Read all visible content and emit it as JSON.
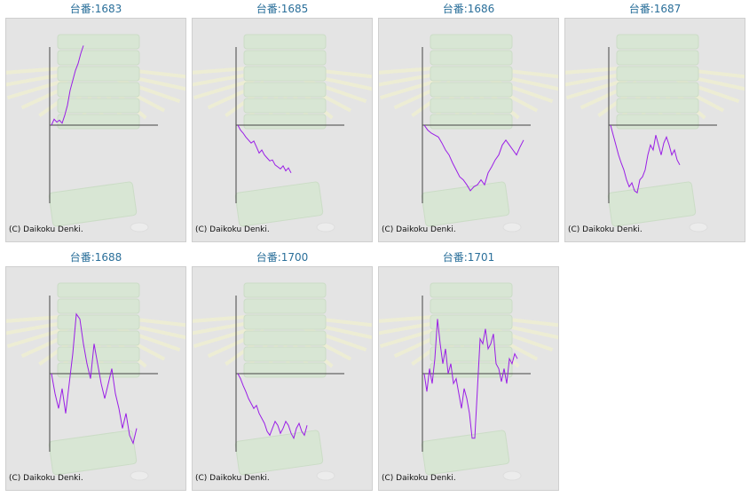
{
  "colors": {
    "title": "#2a6f9a",
    "line": "#9a1ee6",
    "panel_bg": "#e4e4e4",
    "axis": "#444444"
  },
  "copyright": "(C) Daikoku Denki.",
  "machines": [
    {
      "title": "台番:1683",
      "chart_data": {
        "type": "line",
        "x": [
          0,
          3,
          6,
          9,
          12,
          15,
          18,
          21,
          24,
          27,
          30,
          33,
          36
        ],
        "y": [
          0,
          0.06,
          0.03,
          0.05,
          0.02,
          0.1,
          0.2,
          0.35,
          0.45,
          0.55,
          0.62,
          0.72,
          0.8
        ]
      }
    },
    {
      "title": "台番:1685",
      "chart_data": {
        "type": "line",
        "x": [
          0,
          3,
          6,
          9,
          12,
          15,
          18,
          21,
          24,
          27,
          30,
          33,
          36,
          39,
          42,
          45,
          48,
          51,
          54,
          57,
          60
        ],
        "y": [
          0,
          -0.05,
          -0.08,
          -0.12,
          -0.15,
          -0.18,
          -0.16,
          -0.22,
          -0.28,
          -0.25,
          -0.3,
          -0.33,
          -0.36,
          -0.35,
          -0.4,
          -0.42,
          -0.44,
          -0.41,
          -0.46,
          -0.43,
          -0.48
        ]
      }
    },
    {
      "title": "台番:1686",
      "chart_data": {
        "type": "line",
        "x": [
          0,
          4,
          8,
          12,
          16,
          20,
          24,
          28,
          32,
          36,
          40,
          44,
          48,
          52,
          56,
          60,
          64,
          68,
          72,
          76,
          80,
          84,
          88,
          92,
          96,
          100,
          104,
          108,
          112
        ],
        "y": [
          0,
          -0.05,
          -0.08,
          -0.1,
          -0.12,
          -0.18,
          -0.25,
          -0.3,
          -0.38,
          -0.45,
          -0.52,
          -0.55,
          -0.6,
          -0.66,
          -0.62,
          -0.6,
          -0.55,
          -0.6,
          -0.48,
          -0.42,
          -0.35,
          -0.3,
          -0.2,
          -0.15,
          -0.2,
          -0.25,
          -0.3,
          -0.22,
          -0.15
        ]
      }
    },
    {
      "title": "台番:1687",
      "chart_data": {
        "type": "line",
        "x": [
          0,
          3,
          6,
          9,
          12,
          15,
          18,
          21,
          24,
          27,
          30,
          33,
          36,
          39,
          42,
          45,
          48,
          51,
          54,
          57,
          60,
          63,
          66,
          69,
          72,
          75,
          78
        ],
        "y": [
          0,
          -0.1,
          -0.2,
          -0.3,
          -0.38,
          -0.45,
          -0.55,
          -0.62,
          -0.58,
          -0.66,
          -0.68,
          -0.55,
          -0.52,
          -0.45,
          -0.3,
          -0.2,
          -0.25,
          -0.1,
          -0.2,
          -0.3,
          -0.18,
          -0.12,
          -0.2,
          -0.3,
          -0.25,
          -0.35,
          -0.4
        ]
      }
    },
    {
      "title": "台番:1688",
      "chart_data": {
        "type": "line",
        "x": [
          0,
          4,
          8,
          12,
          16,
          20,
          24,
          28,
          32,
          36,
          40,
          44,
          48,
          52,
          56,
          60,
          64,
          68,
          72,
          76,
          80,
          84,
          88,
          92,
          96
        ],
        "y": [
          0,
          -0.2,
          -0.35,
          -0.15,
          -0.4,
          -0.1,
          0.2,
          0.6,
          0.55,
          0.3,
          0.1,
          -0.05,
          0.3,
          0.1,
          -0.1,
          -0.25,
          -0.1,
          0.05,
          -0.2,
          -0.35,
          -0.55,
          -0.4,
          -0.62,
          -0.7,
          -0.55
        ]
      }
    },
    {
      "title": "台番:1700",
      "chart_data": {
        "type": "line",
        "x": [
          0,
          3,
          6,
          9,
          12,
          15,
          18,
          21,
          24,
          27,
          30,
          33,
          36,
          39,
          42,
          45,
          48,
          51,
          54,
          57,
          60,
          63,
          66,
          69,
          72,
          75,
          78
        ],
        "y": [
          0,
          -0.05,
          -0.12,
          -0.18,
          -0.25,
          -0.3,
          -0.35,
          -0.32,
          -0.4,
          -0.45,
          -0.5,
          -0.58,
          -0.62,
          -0.55,
          -0.48,
          -0.52,
          -0.6,
          -0.55,
          -0.48,
          -0.52,
          -0.6,
          -0.65,
          -0.55,
          -0.5,
          -0.58,
          -0.62,
          -0.52
        ]
      }
    },
    {
      "title": "台番:1701",
      "chart_data": {
        "type": "line",
        "x": [
          0,
          3,
          6,
          9,
          12,
          15,
          18,
          21,
          24,
          27,
          30,
          33,
          36,
          39,
          42,
          45,
          48,
          51,
          54,
          57,
          60,
          63,
          66,
          69,
          72,
          75,
          78,
          81,
          84,
          87,
          90,
          93,
          96,
          99,
          102,
          105
        ],
        "y": [
          0,
          -0.18,
          0.05,
          -0.1,
          0.15,
          0.55,
          0.3,
          0.1,
          0.25,
          0.0,
          0.1,
          -0.1,
          -0.05,
          -0.2,
          -0.35,
          -0.15,
          -0.25,
          -0.4,
          -0.65,
          -0.65,
          -0.15,
          0.35,
          0.3,
          0.45,
          0.25,
          0.3,
          0.4,
          0.1,
          0.05,
          -0.08,
          0.05,
          -0.1,
          0.15,
          0.1,
          0.2,
          0.15
        ]
      }
    }
  ]
}
